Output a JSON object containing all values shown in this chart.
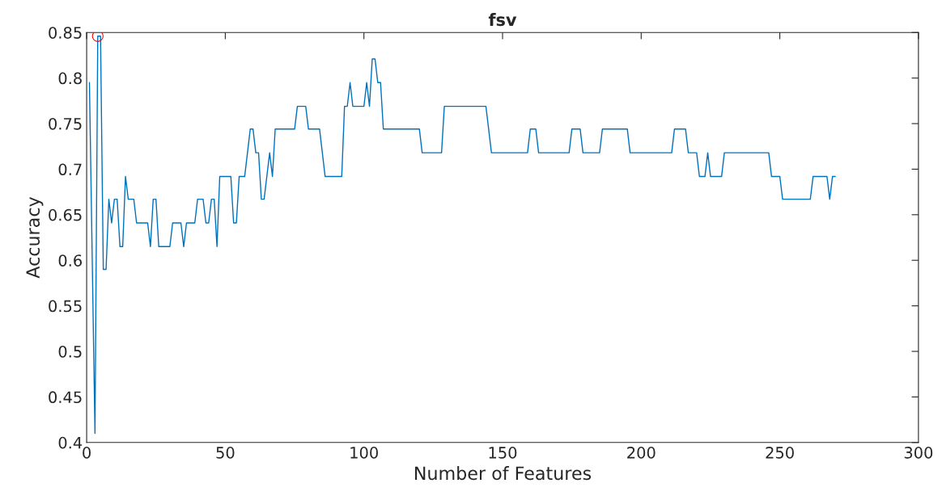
{
  "chart_data": {
    "type": "line",
    "title": "fsv",
    "xlabel": "Number of Features",
    "ylabel": "Accuracy",
    "xlim": [
      0,
      300
    ],
    "xticks": [
      0,
      50,
      100,
      150,
      200,
      250,
      300
    ],
    "ylim": [
      0.4,
      0.85
    ],
    "yticks": [
      0.4,
      0.45,
      0.5,
      0.55,
      0.6,
      0.65,
      0.7,
      0.75,
      0.8,
      0.85
    ],
    "grid": false,
    "legend": false,
    "series": [
      {
        "color": "#0072bd",
        "marker": "none",
        "x": [
          1,
          3,
          4,
          5,
          6,
          7,
          8,
          9,
          10,
          11,
          12,
          13,
          14,
          15,
          17,
          18,
          22,
          23,
          24,
          25,
          26,
          30,
          31,
          34,
          35,
          36,
          39,
          40,
          42,
          43,
          44,
          45,
          46,
          47,
          48,
          52,
          53,
          54,
          55,
          57,
          59,
          60,
          61,
          62,
          63,
          64,
          66,
          67,
          68,
          75,
          76,
          79,
          80,
          84,
          86,
          92,
          93,
          94,
          95,
          96,
          100,
          101,
          102,
          103,
          104,
          105,
          106,
          107,
          120,
          121,
          128,
          129,
          144,
          146,
          159,
          160,
          162,
          163,
          174,
          175,
          178,
          179,
          185,
          186,
          195,
          196,
          211,
          212,
          216,
          217,
          220,
          221,
          223,
          224,
          225,
          229,
          230,
          246,
          247,
          250,
          251,
          261,
          262,
          267,
          268,
          269,
          270
        ],
        "values": [
          0.795,
          0.41,
          0.846,
          0.846,
          0.59,
          0.59,
          0.667,
          0.641,
          0.667,
          0.667,
          0.615,
          0.615,
          0.692,
          0.667,
          0.667,
          0.641,
          0.641,
          0.615,
          0.667,
          0.667,
          0.615,
          0.615,
          0.641,
          0.641,
          0.615,
          0.641,
          0.641,
          0.667,
          0.667,
          0.641,
          0.641,
          0.667,
          0.667,
          0.615,
          0.692,
          0.692,
          0.641,
          0.641,
          0.692,
          0.692,
          0.744,
          0.744,
          0.718,
          0.718,
          0.667,
          0.667,
          0.718,
          0.692,
          0.744,
          0.744,
          0.769,
          0.769,
          0.744,
          0.744,
          0.692,
          0.692,
          0.769,
          0.769,
          0.795,
          0.769,
          0.769,
          0.795,
          0.769,
          0.821,
          0.821,
          0.795,
          0.795,
          0.744,
          0.744,
          0.718,
          0.718,
          0.769,
          0.769,
          0.718,
          0.718,
          0.744,
          0.744,
          0.718,
          0.718,
          0.744,
          0.744,
          0.718,
          0.718,
          0.744,
          0.744,
          0.718,
          0.718,
          0.744,
          0.744,
          0.718,
          0.718,
          0.692,
          0.692,
          0.718,
          0.692,
          0.692,
          0.718,
          0.718,
          0.692,
          0.692,
          0.667,
          0.667,
          0.692,
          0.692,
          0.667,
          0.692,
          0.692
        ]
      },
      {
        "type": "scatter",
        "color": "#ff0000",
        "marker": "circle",
        "x": [
          4
        ],
        "values": [
          0.846
        ]
      }
    ]
  }
}
